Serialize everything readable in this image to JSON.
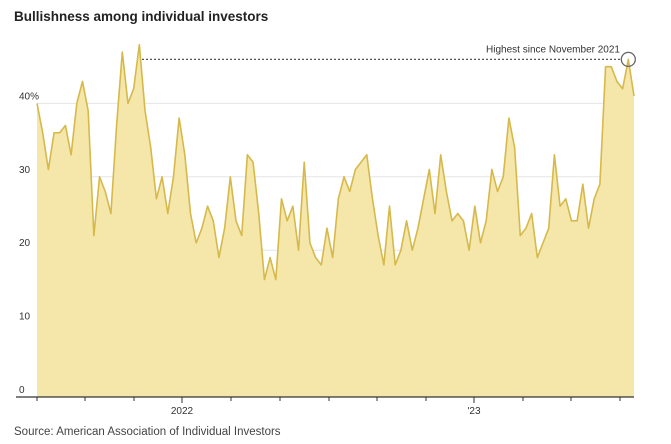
{
  "title": "Bullishness among individual investors",
  "source": "Source: American Association of Individual Investors",
  "annotation": "Highest since November 2021",
  "colors": {
    "fill": "#f5e6a9",
    "line": "#d6b94c",
    "grid": "#e6e6e6",
    "axis": "#333333",
    "dotted": "#555555"
  },
  "chart_data": {
    "type": "area",
    "title": "Bullishness among individual investors",
    "xlabel": "",
    "ylabel": "",
    "ylim": [
      0,
      50
    ],
    "y_ticks": [
      0,
      10,
      20,
      30,
      40
    ],
    "y_tick_labels": [
      "0",
      "10",
      "20",
      "30",
      "40%"
    ],
    "x_tick_labels": [
      "2022",
      "'23"
    ],
    "grid": true,
    "values": [
      40,
      36,
      31,
      36,
      36,
      37,
      33,
      40,
      43,
      39,
      22,
      30,
      28,
      25,
      37,
      47,
      40,
      42,
      48,
      39,
      34,
      27,
      30,
      25,
      30,
      38,
      33,
      25,
      21,
      23,
      26,
      24,
      19,
      23,
      30,
      24,
      22,
      33,
      32,
      25,
      16,
      19,
      16,
      27,
      24,
      26,
      20,
      32,
      21,
      19,
      18,
      23,
      19,
      27,
      30,
      28,
      31,
      32,
      33,
      27,
      22,
      18,
      26,
      18,
      20,
      24,
      20,
      23,
      27,
      31,
      25,
      33,
      28,
      24,
      25,
      24,
      20,
      26,
      21,
      24,
      31,
      28,
      30,
      38,
      34,
      22,
      23,
      25,
      19,
      21,
      23,
      33,
      26,
      27,
      24,
      24,
      29,
      23,
      27,
      29,
      45,
      45,
      43,
      42,
      46,
      41
    ]
  }
}
